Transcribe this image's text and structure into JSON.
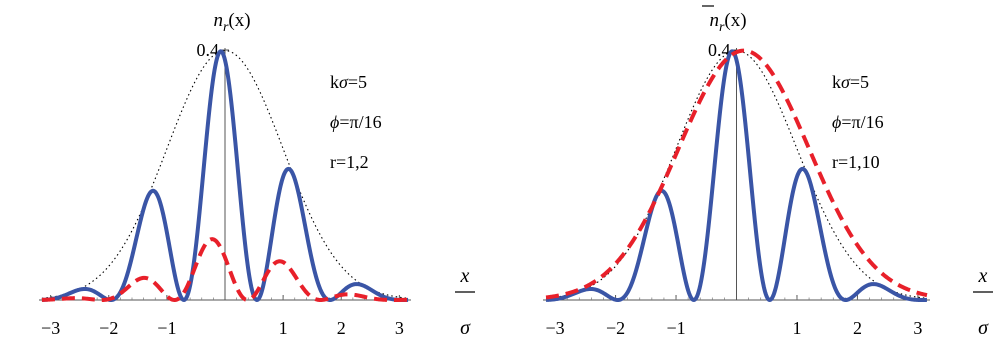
{
  "chart_data": [
    {
      "type": "line",
      "title": "n_r(x)",
      "title_parts": {
        "symbol": "n",
        "sub": "r",
        "arg": "(x)",
        "overline": false
      },
      "xlabel": {
        "top": "x",
        "bottom": "σ"
      },
      "xlim": [
        -3.2,
        3.2
      ],
      "ylim": [
        0,
        0.4
      ],
      "xticks": [
        -3,
        -2,
        -1,
        1,
        2,
        3
      ],
      "xtick_labels": [
        "−3",
        "−2",
        "−1",
        "1",
        "2",
        "3"
      ],
      "ytick_label": "0.4",
      "annotations": [
        "kσ=5",
        "ϕ=π/16",
        "r=1,2"
      ],
      "annotation_parts": [
        {
          "prefix": "k",
          "italic": "σ",
          "suffix": "=5"
        },
        {
          "prefix": "",
          "italic": "ϕ",
          "suffix": "=π/16"
        },
        {
          "prefix": "",
          "italic": "",
          "suffix": "r=1,2"
        }
      ],
      "series": [
        {
          "style": "dotted",
          "color": "#000000",
          "kind": "envelope",
          "amplitude": 0.399,
          "width": 1
        },
        {
          "style": "solid",
          "color": "#3a55a6",
          "kind": "fringe",
          "amplitude": 0.399,
          "k": 5,
          "phi": 0.19635,
          "width": 1
        },
        {
          "style": "dashed",
          "color": "#e8202a",
          "kind": "fringe",
          "amplitude": 0.1,
          "k": 5,
          "phi": 0.6,
          "width": 1
        }
      ]
    },
    {
      "type": "line",
      "title": "n_r(x)",
      "title_parts": {
        "symbol": "n",
        "sub": "r",
        "arg": "(x)",
        "overline": true
      },
      "xlabel": {
        "top": "x",
        "bottom": "σ"
      },
      "xlim": [
        -3.2,
        3.2
      ],
      "ylim": [
        0,
        0.4
      ],
      "xticks": [
        -3,
        -2,
        -1,
        1,
        2,
        3
      ],
      "xtick_labels": [
        "−3",
        "−2",
        "−1",
        "1",
        "2",
        "3"
      ],
      "ytick_label": "0.4",
      "annotations": [
        "kσ=5",
        "ϕ=π/16",
        "r=1,10"
      ],
      "annotation_parts": [
        {
          "prefix": "k",
          "italic": "σ",
          "suffix": "=5"
        },
        {
          "prefix": "",
          "italic": "ϕ",
          "suffix": "=π/16"
        },
        {
          "prefix": "",
          "italic": "",
          "suffix": "r=1,10"
        }
      ],
      "series": [
        {
          "style": "dotted",
          "color": "#000000",
          "kind": "envelope",
          "amplitude": 0.399,
          "width": 1
        },
        {
          "style": "solid",
          "color": "#3a55a6",
          "kind": "fringe",
          "amplitude": 0.399,
          "k": 5,
          "phi": 0.19635,
          "width": 1
        },
        {
          "style": "dashed",
          "color": "#e8202a",
          "kind": "envelope_shifted",
          "amplitude": 0.399,
          "shift": 0.12,
          "width": 1.08
        }
      ]
    }
  ]
}
